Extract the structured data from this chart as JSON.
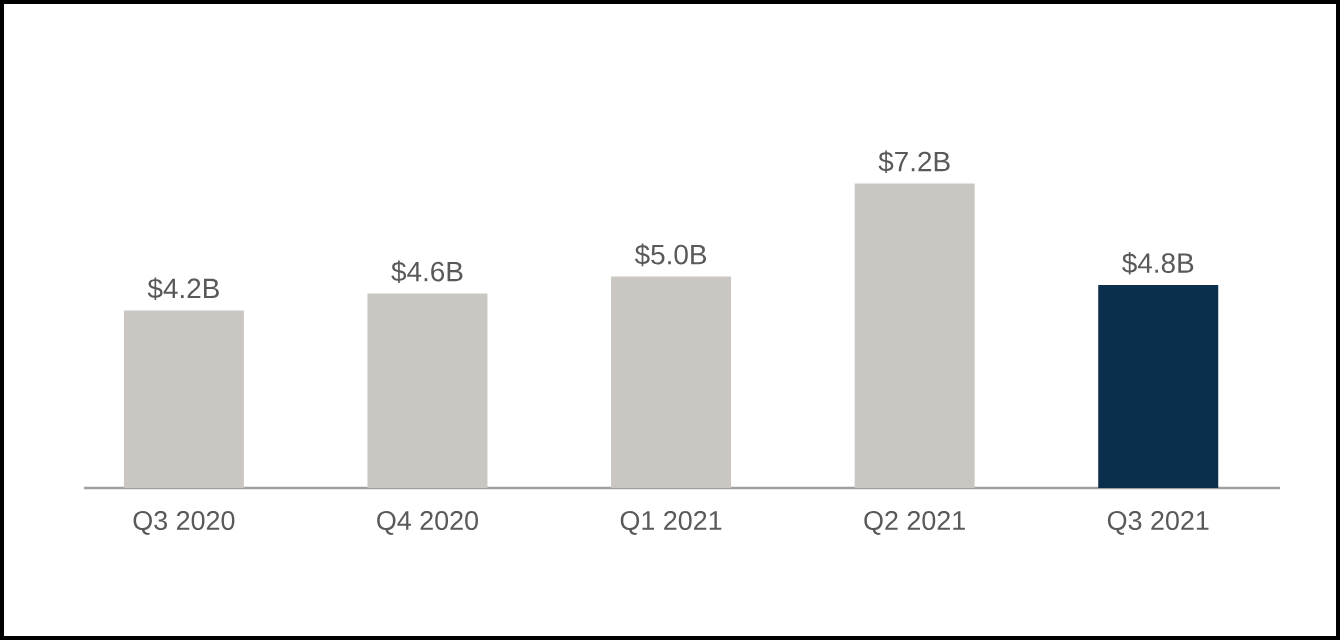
{
  "chart_data": {
    "type": "bar",
    "categories": [
      "Q3 2020",
      "Q4 2020",
      "Q1 2021",
      "Q2 2021",
      "Q3 2021"
    ],
    "values": [
      4.2,
      4.6,
      5.0,
      7.2,
      4.8
    ],
    "value_labels": [
      "$4.2B",
      "$4.6B",
      "$5.0B",
      "$7.2B",
      "$4.8B"
    ],
    "colors": [
      "#cac7c3",
      "#cac7c3",
      "#cac7c3",
      "#cac7c3",
      "#0b2e4a"
    ]
  }
}
